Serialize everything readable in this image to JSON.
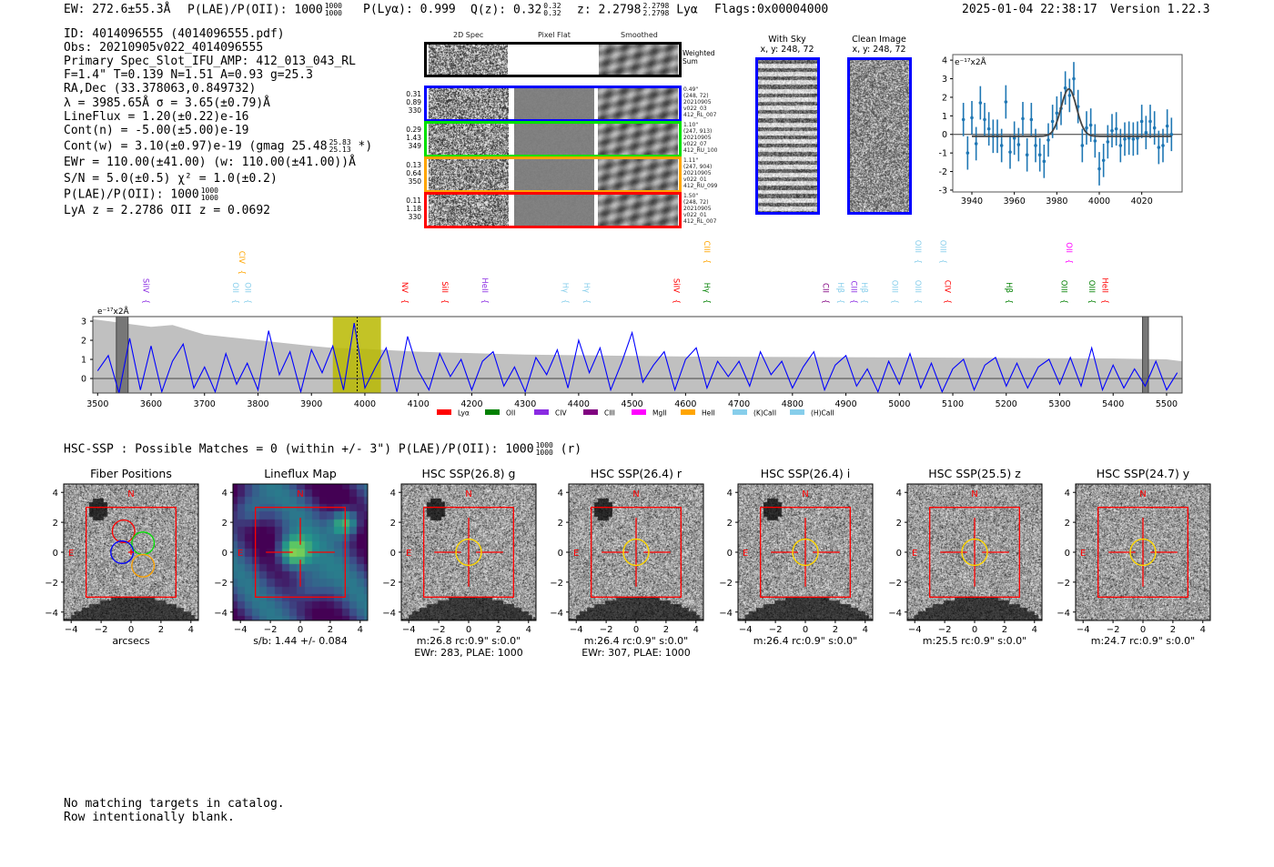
{
  "header": {
    "ew": "EW: 272.6±55.3Å",
    "plae": "P(LAE)/P(OII): 1000",
    "plae_hi": "1000",
    "plae_lo": "1000",
    "plya": "P(Lyα): 0.999",
    "qz": "Q(z): 0.32",
    "qz_hi": "0.32",
    "qz_lo": "0.32",
    "z": "z: 2.2798",
    "z_hi": "2.2798",
    "z_lo": "2.2798",
    "z_line": "Lyα",
    "flags": "Flags:0x00004000",
    "timestamp": "2025-01-04 22:38:17",
    "version": "Version 1.22.3"
  },
  "info": {
    "id": "ID: 4014096555 (4014096555.pdf)",
    "obs": "Obs: 20210905v022_4014096555",
    "primary": "Primary Spec_Slot_IFU_AMP: 412_013_043_RL",
    "params": "F=1.4\"  T=0.139  N=1.51  A=0.93  g=25.3",
    "radec": "RA,Dec (33.378063,0.849732)",
    "lambda": "λ = 3985.65Å   σ = 3.65(±0.79)Å",
    "lineflux": "LineFlux = 1.20(±0.22)e-16",
    "contn": "Cont(n) = -5.00(±5.00)e-19",
    "contw": "Cont(w) = 3.10(±0.97)e-19 (gmag 25.48",
    "contw_hi": "25.83",
    "contw_lo": "25.13",
    "contw_tail": "*)",
    "ewr": "EWr = 110.00(±41.00) (w: 110.00(±41.00))Å",
    "sn": "S/N = 5.0(±0.5)  χ² = 1.0(±0.2)",
    "plae": "P(LAE)/P(OII): 1000",
    "plae_hi": "1000",
    "plae_lo": "1000",
    "z": "LyA z = 2.2786   OII z = 0.0692"
  },
  "spec2d": {
    "col_titles": [
      "2D Spec",
      "Pixel Flat",
      "Smoothed"
    ],
    "weighted_label_1": "Weighted",
    "weighted_label_2": "Sum",
    "rows": [
      {
        "color": "#0000ff",
        "left": [
          "0.31",
          "0.89",
          "330"
        ],
        "right": [
          "0.49\"",
          "(248, 72)",
          "20210905",
          "v022_03",
          "412_RL_007"
        ]
      },
      {
        "color": "#00e000",
        "left": [
          "0.29",
          "1.43",
          "349"
        ],
        "right": [
          "1.10\"",
          "(247, 913)",
          "20210905",
          "v022_07",
          "412_RU_100"
        ]
      },
      {
        "color": "#ffa500",
        "left": [
          "0.13",
          "0.64",
          "350"
        ],
        "right": [
          "1.11\"",
          "(247, 904)",
          "20210905",
          "v022_01",
          "412_RU_099"
        ]
      },
      {
        "color": "#ff0000",
        "left": [
          "0.11",
          "1.18",
          "330"
        ],
        "right": [
          "1.50\"",
          "(248, 72)",
          "20210905",
          "v022_01",
          "412_RL_007"
        ]
      }
    ]
  },
  "cutouts": {
    "with_sky_title": "With Sky",
    "with_sky_xy": "x, y: 248, 72",
    "clean_title": "Clean Image",
    "clean_xy": "x, y: 248, 72"
  },
  "chart_data": [
    {
      "type": "scatter",
      "name": "line-fit",
      "ylabel": "e⁻¹⁷x2Å",
      "xlim": [
        3931,
        4039
      ],
      "ylim": [
        -3.1,
        4.3
      ],
      "xticks": [
        3940,
        3960,
        3980,
        4000,
        4020
      ],
      "yticks": [
        -3,
        -2,
        -1,
        0,
        1,
        2,
        3,
        4
      ],
      "x_start": 3936,
      "x_step": 2,
      "y": [
        0.8,
        -1.0,
        0.9,
        -0.5,
        1.7,
        0.8,
        0.3,
        -0.1,
        -0.1,
        -0.6,
        1.75,
        -0.95,
        -0.2,
        -0.55,
        0.85,
        -1.1,
        0.8,
        -0.6,
        -1.1,
        -1.45,
        -0.3,
        0.7,
        1.15,
        1.4,
        2.5,
        2.1,
        3.0,
        1.5,
        -0.6,
        0.35,
        0.5,
        -0.35,
        -1.85,
        -1.4,
        -0.4,
        0.2,
        0.3,
        -0.6,
        -0.25,
        -0.2,
        -0.25,
        -0.2,
        0.7,
        0.1,
        0.7,
        0.35,
        -0.7,
        -0.6,
        0.45,
        0.0
      ],
      "yerr": 0.9,
      "fit": {
        "center": 3985.65,
        "sigma": 3.65,
        "amplitude": 2.55,
        "continuum": -0.1,
        "range": [
          3940,
          4034
        ]
      }
    },
    {
      "type": "line",
      "name": "full-spectrum",
      "ylabel": "e⁻¹⁷x2Å",
      "xlim": [
        3491,
        5529
      ],
      "ylim": [
        -0.76,
        3.24
      ],
      "xticks": [
        3500,
        3600,
        3700,
        3800,
        3900,
        4000,
        4100,
        4200,
        4300,
        4400,
        4500,
        4600,
        4700,
        4800,
        4900,
        5000,
        5100,
        5200,
        5300,
        5400,
        5500
      ],
      "yticks": [
        0,
        1,
        2,
        3
      ],
      "x_start": 3500,
      "x_step": 20,
      "flux": [
        0.4,
        1.2,
        -0.8,
        2.1,
        -0.6,
        1.7,
        -0.7,
        0.9,
        1.8,
        -0.5,
        0.6,
        -0.7,
        1.3,
        -0.3,
        0.8,
        -0.6,
        2.5,
        0.2,
        1.4,
        -0.7,
        1.5,
        0.3,
        1.7,
        -0.6,
        2.9,
        -0.5,
        0.6,
        1.6,
        -0.7,
        2.2,
        0.4,
        -0.6,
        1.3,
        0.1,
        1.0,
        -0.6,
        0.9,
        1.4,
        -0.4,
        0.6,
        -0.7,
        1.1,
        0.2,
        1.5,
        -0.5,
        2.0,
        0.3,
        1.6,
        -0.6,
        0.8,
        2.4,
        -0.2,
        0.7,
        1.4,
        -0.6,
        1.0,
        1.6,
        -0.5,
        0.9,
        0.1,
        0.9,
        -0.4,
        1.4,
        0.2,
        0.9,
        -0.5,
        0.6,
        1.4,
        -0.6,
        0.7,
        1.2,
        -0.4,
        0.5,
        -0.7,
        0.9,
        -0.3,
        1.3,
        -0.5,
        0.8,
        -0.7,
        0.5,
        1.0,
        -0.6,
        0.7,
        1.1,
        -0.4,
        0.8,
        -0.5,
        0.6,
        1.0,
        -0.3,
        1.1,
        -0.4,
        1.6,
        -0.6,
        0.7,
        -0.5,
        0.5,
        -0.4,
        0.9,
        -0.6,
        0.3
      ],
      "error_envelope": [
        [
          3491,
          3.1
        ],
        [
          3520,
          3.0
        ],
        [
          3600,
          2.7
        ],
        [
          3640,
          2.8
        ],
        [
          3700,
          2.3
        ],
        [
          3800,
          2.0
        ],
        [
          3900,
          1.7
        ],
        [
          3940,
          1.6
        ],
        [
          4000,
          1.55
        ],
        [
          4100,
          1.4
        ],
        [
          4300,
          1.25
        ],
        [
          4600,
          1.15
        ],
        [
          5000,
          1.1
        ],
        [
          5400,
          1.05
        ],
        [
          5500,
          1.0
        ],
        [
          5529,
          0.9
        ]
      ],
      "highlight_band": [
        3940,
        4030
      ],
      "line_marker": 3985.65,
      "masked_bands": [
        [
          3535,
          3557
        ],
        [
          5455,
          5466
        ]
      ],
      "lines": [
        {
          "label": "SiIV",
          "wave": 3580,
          "color": "#8a2be2",
          "row": 1
        },
        {
          "label": "OII",
          "wave": 3748,
          "color": "#87ceeb",
          "row": 1
        },
        {
          "label": "CIV",
          "wave": 3760,
          "color": "#ffa500",
          "row": 1
        },
        {
          "label": "OII",
          "wave": 3771,
          "color": "#87ceeb",
          "row": 1
        },
        {
          "label": "NV",
          "wave": 4065,
          "color": "#ff0000",
          "row": 1
        },
        {
          "label": "SiII",
          "wave": 4140,
          "color": "#ff0000",
          "row": 1
        },
        {
          "label": "HeII",
          "wave": 4215,
          "color": "#8a2be2",
          "row": 1
        },
        {
          "label": "Hγ",
          "wave": 4365,
          "color": "#87ceeb",
          "row": 1
        },
        {
          "label": "Hγ",
          "wave": 4405,
          "color": "#87ceeb",
          "row": 1
        },
        {
          "label": "SiIV",
          "wave": 4573,
          "color": "#ff0000",
          "row": 1
        },
        {
          "label": "Hγ",
          "wave": 4630,
          "color": "#008000",
          "row": 1
        },
        {
          "label": "CIII",
          "wave": 4630,
          "color": "#ffa500",
          "row": 2
        },
        {
          "label": "CII",
          "wave": 4852,
          "color": "#800080",
          "row": 1
        },
        {
          "label": "Hβ",
          "wave": 4880,
          "color": "#87ceeb",
          "row": 1
        },
        {
          "label": "CIII",
          "wave": 4905,
          "color": "#8a2be2",
          "row": 1
        },
        {
          "label": "Hβ",
          "wave": 4925,
          "color": "#87ceeb",
          "row": 1
        },
        {
          "label": "OIII",
          "wave": 4982,
          "color": "#87ceeb",
          "row": 1
        },
        {
          "label": "OIII",
          "wave": 5025,
          "color": "#87ceeb",
          "row": 1
        },
        {
          "label": "OIII",
          "wave": 5025,
          "color": "#87ceeb",
          "row": 2
        },
        {
          "label": "CIV",
          "wave": 5080,
          "color": "#ff0000",
          "row": 1
        },
        {
          "label": "OIII",
          "wave": 5072,
          "color": "#87ceeb",
          "row": 2
        },
        {
          "label": "Hβ",
          "wave": 5195,
          "color": "#008000",
          "row": 1
        },
        {
          "label": "OIII",
          "wave": 5298,
          "color": "#008000",
          "row": 1
        },
        {
          "label": "OII",
          "wave": 5308,
          "color": "#ff00ff",
          "row": 2
        },
        {
          "label": "OIII",
          "wave": 5350,
          "color": "#008000",
          "row": 1
        },
        {
          "label": "HeII",
          "wave": 5375,
          "color": "#ff0000",
          "row": 1
        }
      ],
      "legend": [
        {
          "label": "Lyα",
          "color": "#ff0000"
        },
        {
          "label": "OII",
          "color": "#008000"
        },
        {
          "label": "CIV",
          "color": "#8a2be2"
        },
        {
          "label": "CIII",
          "color": "#800080"
        },
        {
          "label": "MgII",
          "color": "#ff00ff"
        },
        {
          "label": "HeII",
          "color": "#ffa500"
        },
        {
          "label": "(K)CaII",
          "color": "#87ceeb"
        },
        {
          "label": "(H)CaII",
          "color": "#87ceeb"
        }
      ],
      "legend_placement": "bottom-center"
    }
  ],
  "hsc": {
    "summary": "HSC-SSP : Possible Matches = 0 (within +/- 3\")  P(LAE)/P(OII): 1000",
    "summary_hi": "1000",
    "summary_lo": "1000",
    "summary_tail": "(r)",
    "ticks": [
      "−4",
      "−2",
      "0",
      "2",
      "4"
    ],
    "tick_values": [
      -4,
      -2,
      0,
      2,
      4
    ],
    "north": "N",
    "east": "E",
    "panels": [
      {
        "title": "Fiber Positions",
        "kind": "fibers",
        "labels": [
          "arcsecs"
        ]
      },
      {
        "title": "Lineflux Map",
        "kind": "map",
        "labels": [
          "s/b: 1.44 +/- 0.084"
        ]
      },
      {
        "title": "HSC SSP(26.8) g",
        "kind": "img",
        "labels": [
          "m:26.8 rc:0.9\"  s:0.0\"",
          "EWr: 283, PLAE: 1000"
        ]
      },
      {
        "title": "HSC SSP(26.4) r",
        "kind": "img",
        "labels": [
          "m:26.4 rc:0.9\"  s:0.0\"",
          "EWr: 307, PLAE: 1000"
        ]
      },
      {
        "title": "HSC SSP(26.4) i",
        "kind": "img",
        "labels": [
          "m:26.4 rc:0.9\"  s:0.0\""
        ]
      },
      {
        "title": "HSC SSP(25.5) z",
        "kind": "img",
        "labels": [
          "m:25.5 rc:0.9\"  s:0.0\""
        ]
      },
      {
        "title": "HSC SSP(24.7) y",
        "kind": "img",
        "labels": [
          "m:24.7 rc:0.9\"  s:0.0\""
        ]
      }
    ]
  },
  "footer": {
    "line1": "No matching targets in catalog.",
    "line2": "Row intentionally blank."
  }
}
